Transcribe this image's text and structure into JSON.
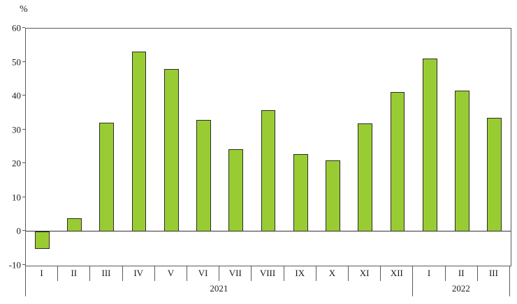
{
  "chart_data": {
    "type": "bar",
    "title": "",
    "xlabel": "",
    "ylabel": "%",
    "ylim": [
      -10,
      60
    ],
    "yticks": [
      -10,
      0,
      10,
      20,
      30,
      40,
      50,
      60
    ],
    "grid": false,
    "legend": "none",
    "bar_color": "#99CC33",
    "bar_border": "#2b2b2b",
    "groups": [
      {
        "year": "2021",
        "categories": [
          "I",
          "II",
          "III",
          "IV",
          "V",
          "VI",
          "VII",
          "VIII",
          "IX",
          "X",
          "XI",
          "XII"
        ],
        "values": [
          -5,
          4,
          32.3,
          53.3,
          48,
          33,
          24.3,
          36,
          23,
          21,
          32,
          41.2
        ]
      },
      {
        "year": "2022",
        "categories": [
          "I",
          "II",
          "III"
        ],
        "values": [
          51.2,
          41.7,
          33.7
        ]
      }
    ]
  }
}
